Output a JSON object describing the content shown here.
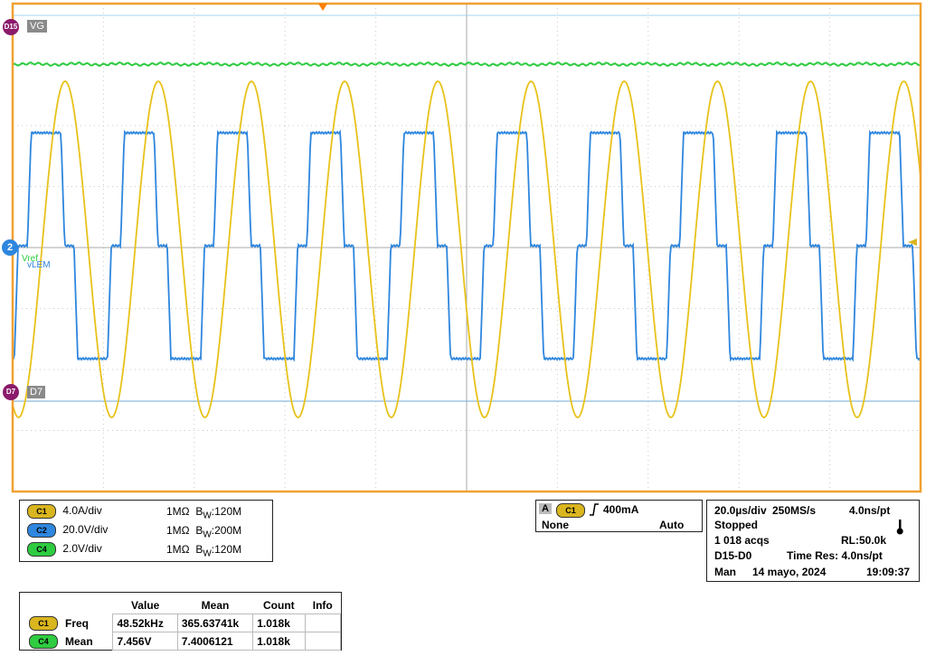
{
  "scope": {
    "ref_labels": {
      "vref": "Vref",
      "vlem": "vLEM"
    },
    "digital": [
      {
        "marker": "D15",
        "label": "VG"
      },
      {
        "marker": "D7",
        "label": "D7"
      }
    ],
    "ch2_marker": "2"
  },
  "channels": [
    {
      "badge": "C1",
      "color": "#d9b51f",
      "scale": "4.0A/div",
      "impedance": "1MΩ",
      "bw_prefix": "B",
      "bw_sub": "W",
      "bw": ":120M"
    },
    {
      "badge": "C2",
      "color": "#2e86de",
      "scale": "20.0V/div",
      "impedance": "1MΩ",
      "bw_prefix": "B",
      "bw_sub": "W",
      "bw": ":200M"
    },
    {
      "badge": "C4",
      "color": "#2ecc40",
      "scale": "2.0V/div",
      "impedance": "1MΩ",
      "bw_prefix": "B",
      "bw_sub": "W",
      "bw": ":120M"
    }
  ],
  "trigger": {
    "mode_letter": "A",
    "source": "C1",
    "level": "400mA",
    "coupling": "None",
    "mode": "Auto"
  },
  "acquisition": {
    "timebase": "20.0µs/div",
    "sample_rate": "250MS/s",
    "resolution": "4.0ns/pt",
    "state": "Stopped",
    "acqs": "1 018 acqs",
    "record_length": "RL:50.0k",
    "digital_range": "D15-D0",
    "time_res": "Time Res: 4.0ns/pt",
    "day": "Man",
    "date": "14 mayo, 2024",
    "time": "19:09:37"
  },
  "measurements": {
    "headers": [
      "",
      "",
      "Value",
      "Mean",
      "Count",
      "Info"
    ],
    "rows": [
      {
        "badge": "C1",
        "name": "Freq",
        "value": "48.52kHz",
        "mean": "365.63741k",
        "count": "1.018k",
        "info": ""
      },
      {
        "badge": "C4",
        "name": "Mean",
        "value": "7.456V",
        "mean": "7.4006121",
        "count": "1.018k",
        "info": ""
      }
    ]
  }
}
